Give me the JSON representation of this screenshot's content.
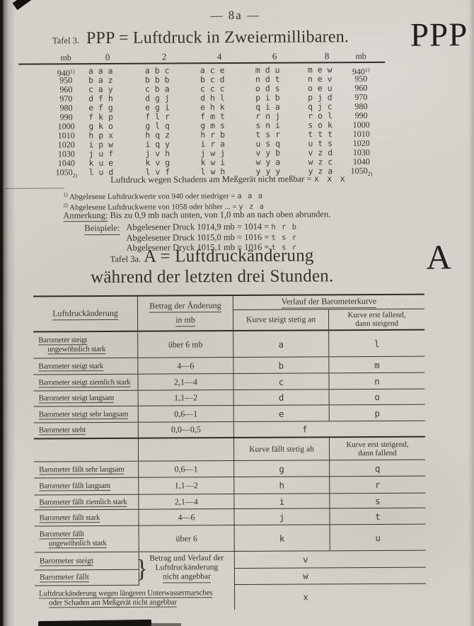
{
  "colors": {
    "paper": "#d4d1ca",
    "ink": "#343229",
    "line": "#35332c"
  },
  "page": {
    "number": "— 8a —"
  },
  "tafel3": {
    "label": "Tafel 3.",
    "title": "PPP = Luftdruck in Zweiermillibaren.",
    "margin_letter": "PPP",
    "col_headers": [
      "mb",
      "0",
      "2",
      "4",
      "6",
      "8",
      "mb"
    ],
    "rows": [
      {
        "mb": "940",
        "mark": "1)",
        "mark_pos": "sup",
        "codes": [
          "a a a",
          "a b c",
          "a c e",
          "m d u",
          "m e w"
        ]
      },
      {
        "mb": "950",
        "codes": [
          "b a z",
          "b b b",
          "b c d",
          "n d t",
          "n e v"
        ]
      },
      {
        "mb": "960",
        "codes": [
          "c a y",
          "c b a",
          "c c c",
          "o d s",
          "o e u"
        ]
      },
      {
        "mb": "970",
        "codes": [
          "d f h",
          "d g j",
          "d h l",
          "p i b",
          "p j d"
        ]
      },
      {
        "mb": "980",
        "codes": [
          "e f g",
          "e g i",
          "e h k",
          "q i a",
          "q j c"
        ]
      },
      {
        "mb": "990",
        "codes": [
          "f k p",
          "f l r",
          "f m t",
          "r n j",
          "r o l"
        ]
      },
      {
        "mb": "1000",
        "codes": [
          "g k o",
          "g l q",
          "g m s",
          "s n i",
          "s o k"
        ]
      },
      {
        "mb": "1010",
        "codes": [
          "h p x",
          "h q z",
          "h r b",
          "t s r",
          "t t t"
        ]
      },
      {
        "mb": "1020",
        "codes": [
          "i p w",
          "i q y",
          "i r a",
          "u s q",
          "u t s"
        ]
      },
      {
        "mb": "1030",
        "codes": [
          "j u f",
          "j v h",
          "j w j",
          "v y b",
          "v z d"
        ]
      },
      {
        "mb": "1040",
        "codes": [
          "k u e",
          "k v g",
          "k w i",
          "w y a",
          "w z c"
        ]
      },
      {
        "mb": "1050",
        "mark": "2)",
        "mark_pos": "sub",
        "codes": [
          "l u d",
          "l v f",
          "l w h",
          "y y y",
          "y z a"
        ]
      }
    ],
    "xxx_text": "Luftdruck wegen Schadens am Meßgerät nicht meßbar = ",
    "xxx_code": "x x x",
    "footnotes": [
      {
        "mark": "1)",
        "text": "Abgelesene Luftdruckwerte von  940 oder niedriger = ",
        "code": "a a a"
      },
      {
        "mark": "2)",
        "text": "Abgelesene Luftdruckwerte von 1058 oder höher ... = ",
        "code": "y z a"
      }
    ],
    "anmerkung_label": "Anmerkung:",
    "anmerkung_text": "Bis zu 0,9 mb nach unten, von 1,0 mb an nach oben abrunden.",
    "beispiele_label": "Beispiele:",
    "beispiele": [
      {
        "text": "Abgelesener Druck 1014,9 mb = 1014 = ",
        "code": "h r b"
      },
      {
        "text": "Abgelesener Druck 1015,0 mb = 1016 = ",
        "code": "t s r"
      },
      {
        "text": "Abgelesener Dryck 1015,1 mb = 1016 = ",
        "code": "t s r"
      }
    ]
  },
  "tafel3a": {
    "label": "Tafel 3a.",
    "title_line1": "A = Luftdruckänderung",
    "title_line2": "während der letzten drei Stunden.",
    "margin_letter": "A",
    "table": {
      "col1_header": "Luftdruckänderung",
      "col2_header_line1": "Betrag der Änderung",
      "col2_header_line2": "in mb",
      "col34_header": "Verlauf der Barometerkurve",
      "rise_sub1": "Kurve steigt stetig an",
      "rise_sub2_line1": "Kurve erst fallend,",
      "rise_sub2_line2": "dann steigend",
      "fall_sub1": "Kurve fällt stetig ab",
      "fall_sub2_line1": "Kurve erst steigend,",
      "fall_sub2_line2": "dann fallend",
      "rise_rows": [
        {
          "label1": "Barometer steigt",
          "label2": "ungewöhnlich stark",
          "amount": "über 6 mb",
          "code1": "a",
          "code2": "l"
        },
        {
          "label1": "Barometer steigt stark",
          "amount": "4—6",
          "code1": "b",
          "code2": "m"
        },
        {
          "label1": "Barometer steigt ziemlich stark",
          "amount": "2,1—4",
          "code1": "c",
          "code2": "n"
        },
        {
          "label1": "Barometer steigt langsam",
          "amount": "1,1—2",
          "code1": "d",
          "code2": "o"
        },
        {
          "label1": "Barometer steigt sehr langsam",
          "amount": "0,6—1",
          "code1": "e",
          "code2": "p"
        }
      ],
      "steht_row": {
        "label": "Barometer steht",
        "amount": "0,0—0,5",
        "code": "f"
      },
      "fall_rows": [
        {
          "label1": "Barometer fällt sehr langsam",
          "amount": "0,6—1",
          "code1": "g",
          "code2": "q"
        },
        {
          "label1": "Barometer fällt langsam",
          "amount": "1,1—2",
          "code1": "h",
          "code2": "r"
        },
        {
          "label1": "Barometer fällt ziemlich stark",
          "amount": "2,1—4",
          "code1": "i",
          "code2": "s"
        },
        {
          "label1": "Barometer fällt stark",
          "amount": "4—6",
          "code1": "j",
          "code2": "t"
        },
        {
          "label1": "Barometer fällt",
          "label2": "ungewöhnlich stark",
          "amount": "über 6",
          "code1": "k",
          "code2": "u"
        }
      ],
      "bottom": {
        "steigt_label": "Barometer steigt",
        "faellt_label": "Barometer fällt",
        "brace": "}",
        "note_line1": "Betrag und Verlauf der",
        "note_line2": "Luftdruckänderung",
        "note_line3": "nicht angebbar",
        "code_v": "v",
        "code_w": "w",
        "last_label_line1": "Luftdruckänderung wegen längeren Unterwassermarsches",
        "last_label_line2": "oder Schaden am Meßgerät nicht angebbar",
        "code_x": "x"
      }
    }
  }
}
